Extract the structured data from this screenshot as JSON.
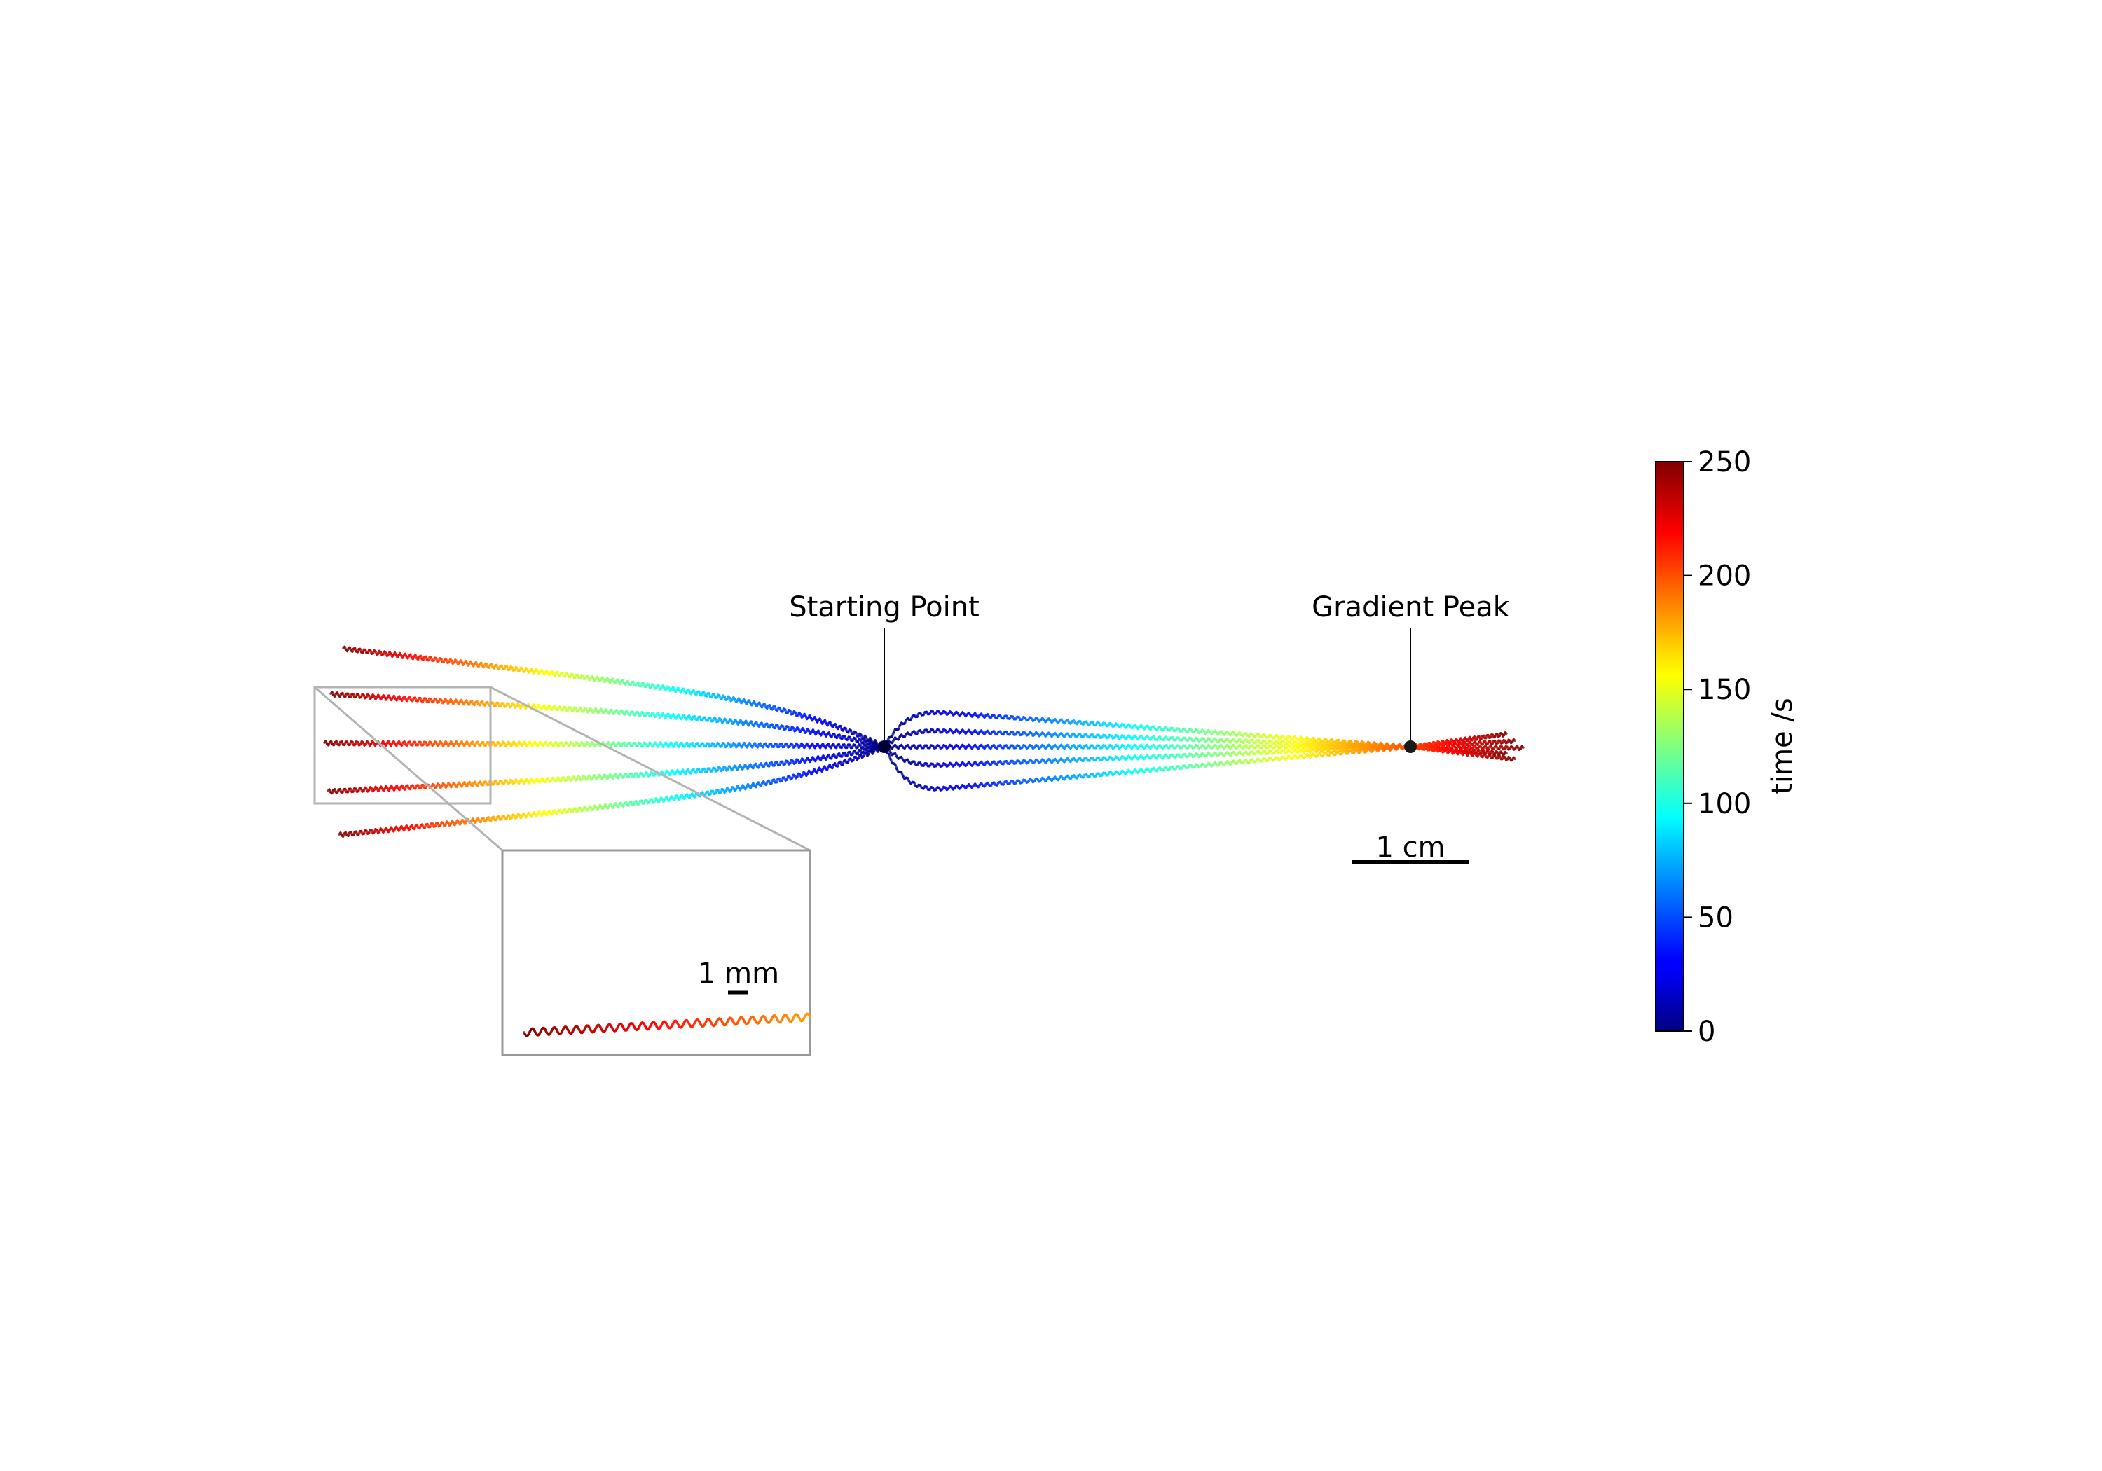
{
  "annotations": {
    "start_label": "Starting Point",
    "peak_label": "Gradient Peak"
  },
  "scale_bars": {
    "main_label": "1 cm",
    "inset_label": "1 mm"
  },
  "colorbar": {
    "label": "time /s",
    "min": 0,
    "max": 250,
    "ticks": [
      {
        "value": 0,
        "label": "0"
      },
      {
        "value": 50,
        "label": "50"
      },
      {
        "value": 100,
        "label": "100"
      },
      {
        "value": 150,
        "label": "150"
      },
      {
        "value": 200,
        "label": "200"
      },
      {
        "value": 250,
        "label": "250"
      }
    ],
    "colormap": "jet"
  },
  "colors": {
    "annotation_line": "#000000",
    "inset_frame": "#999999",
    "zoom_connector": "#b3b3b3"
  },
  "chart_data": {
    "type": "line",
    "description_free": true,
    "color_encoding": "time (s)",
    "time_range": [
      0,
      250
    ],
    "trajectory_groups": [
      {
        "direction": "left",
        "count": 5,
        "duration_s": 250
      },
      {
        "direction": "right",
        "count": 5,
        "duration_s": 250
      }
    ],
    "inset_trajectory_time_range": [
      180,
      250
    ]
  }
}
